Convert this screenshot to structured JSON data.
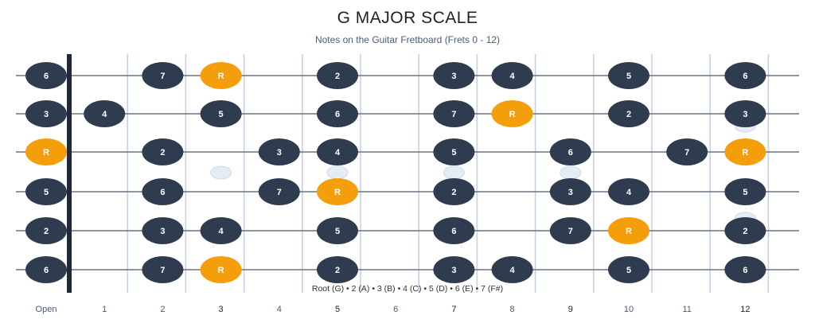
{
  "title": "G MAJOR SCALE",
  "subtitle": "Notes on the Guitar Fretboard (Frets 0 - 12)",
  "legend": "Root (G)  •  2 (A)  •  3 (B)  •  4 (C)  •  5 (D)  •  6 (E)  •  7 (F#)",
  "colors": {
    "note": "#2f3b4e",
    "root": "#f59e0b",
    "string": "#6b7280",
    "fret": "#c7d2e0",
    "nut": "#1f2937",
    "inlay": "#e5ecf6"
  },
  "fret_labels": [
    "Open",
    "1",
    "2",
    "3",
    "4",
    "5",
    "6",
    "7",
    "8",
    "9",
    "10",
    "11",
    "12"
  ],
  "inlay_frets": [
    3,
    5,
    7,
    9
  ],
  "double_inlay_fret": 12,
  "strings": [
    {
      "notes": [
        {
          "fret": 0,
          "label": "6"
        },
        {
          "fret": 2,
          "label": "7"
        },
        {
          "fret": 3,
          "label": "R",
          "root": true
        },
        {
          "fret": 5,
          "label": "2"
        },
        {
          "fret": 7,
          "label": "3"
        },
        {
          "fret": 8,
          "label": "4"
        },
        {
          "fret": 10,
          "label": "5"
        },
        {
          "fret": 12,
          "label": "6"
        }
      ]
    },
    {
      "notes": [
        {
          "fret": 0,
          "label": "3"
        },
        {
          "fret": 1,
          "label": "4"
        },
        {
          "fret": 3,
          "label": "5"
        },
        {
          "fret": 5,
          "label": "6"
        },
        {
          "fret": 7,
          "label": "7"
        },
        {
          "fret": 8,
          "label": "R",
          "root": true
        },
        {
          "fret": 10,
          "label": "2"
        },
        {
          "fret": 12,
          "label": "3"
        }
      ]
    },
    {
      "notes": [
        {
          "fret": 0,
          "label": "R",
          "root": true
        },
        {
          "fret": 2,
          "label": "2"
        },
        {
          "fret": 4,
          "label": "3"
        },
        {
          "fret": 5,
          "label": "4"
        },
        {
          "fret": 7,
          "label": "5"
        },
        {
          "fret": 9,
          "label": "6"
        },
        {
          "fret": 11,
          "label": "7"
        },
        {
          "fret": 12,
          "label": "R",
          "root": true
        }
      ]
    },
    {
      "notes": [
        {
          "fret": 0,
          "label": "5"
        },
        {
          "fret": 2,
          "label": "6"
        },
        {
          "fret": 4,
          "label": "7"
        },
        {
          "fret": 5,
          "label": "R",
          "root": true
        },
        {
          "fret": 7,
          "label": "2"
        },
        {
          "fret": 9,
          "label": "3"
        },
        {
          "fret": 10,
          "label": "4"
        },
        {
          "fret": 12,
          "label": "5"
        }
      ]
    },
    {
      "notes": [
        {
          "fret": 0,
          "label": "2"
        },
        {
          "fret": 2,
          "label": "3"
        },
        {
          "fret": 3,
          "label": "4"
        },
        {
          "fret": 5,
          "label": "5"
        },
        {
          "fret": 7,
          "label": "6"
        },
        {
          "fret": 9,
          "label": "7"
        },
        {
          "fret": 10,
          "label": "R",
          "root": true
        },
        {
          "fret": 12,
          "label": "2"
        }
      ]
    },
    {
      "notes": [
        {
          "fret": 0,
          "label": "6"
        },
        {
          "fret": 2,
          "label": "7"
        },
        {
          "fret": 3,
          "label": "R",
          "root": true
        },
        {
          "fret": 5,
          "label": "2"
        },
        {
          "fret": 7,
          "label": "3"
        },
        {
          "fret": 8,
          "label": "4"
        },
        {
          "fret": 10,
          "label": "5"
        },
        {
          "fret": 12,
          "label": "6"
        }
      ]
    }
  ]
}
